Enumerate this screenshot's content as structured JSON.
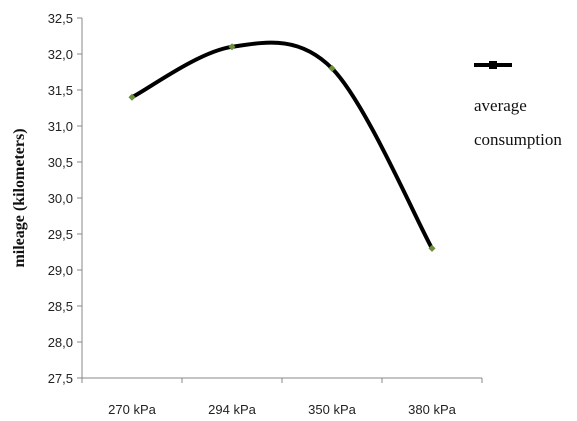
{
  "chart_data": {
    "type": "line",
    "title": "",
    "xlabel": "",
    "ylabel": "mileage (kilometers)",
    "categories": [
      "270 kPa",
      "294 kPa",
      "350 kPa",
      "380 kPa"
    ],
    "series": [
      {
        "name": "average consumption",
        "values": [
          31.4,
          32.1,
          31.8,
          29.3
        ],
        "color": "#000000",
        "marker_color": "#6b8f3a"
      }
    ],
    "ylim": [
      27.5,
      32.5
    ],
    "ytick_step": 0.5,
    "ytick_labels": [
      "27,5",
      "28,0",
      "28,5",
      "29,0",
      "29,5",
      "30,0",
      "30,5",
      "31,0",
      "31,5",
      "32,0",
      "32,5"
    ],
    "grid": false,
    "smooth": true,
    "legend": {
      "position": "right",
      "label_lines": [
        "average",
        "consumption"
      ]
    }
  }
}
